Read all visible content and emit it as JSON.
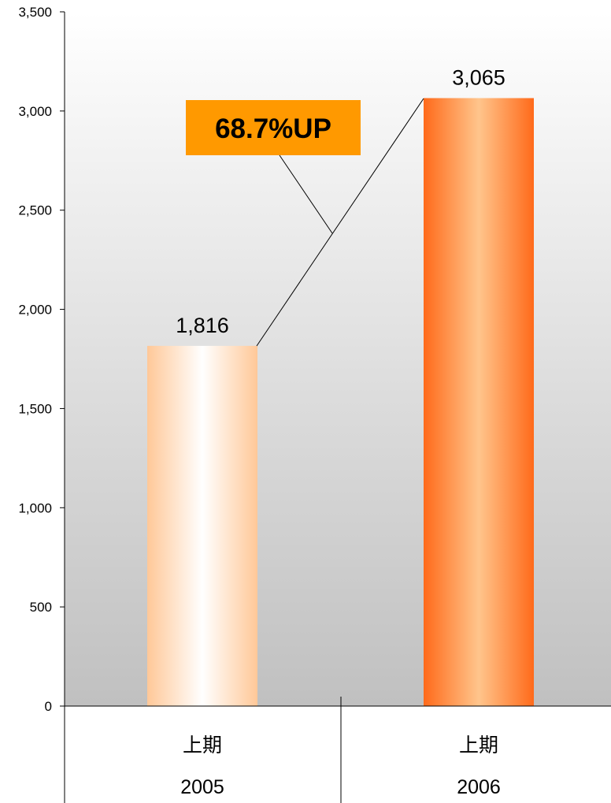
{
  "chart_data": {
    "type": "bar",
    "categories": [
      {
        "period": "上期",
        "year": "2005"
      },
      {
        "period": "上期",
        "year": "2006"
      }
    ],
    "values": [
      1816,
      3065
    ],
    "value_labels": [
      "1,816",
      "3,065"
    ],
    "ylim": [
      0,
      3500
    ],
    "yticks": [
      0,
      500,
      1000,
      1500,
      2000,
      2500,
      3000,
      3500
    ],
    "ytick_labels": [
      "0",
      "500",
      "1,000",
      "1,500",
      "2,000",
      "2,500",
      "3,000",
      "3,500"
    ],
    "title": "",
    "xlabel": "",
    "ylabel": "",
    "grid": false,
    "annotation": {
      "text": "68.7%UP",
      "box_color": "#FF9900"
    },
    "plot_background": {
      "top": "#FFFFFF",
      "bottom": "#C0C0C0"
    },
    "bar_colors": [
      {
        "edge": "#FFC898",
        "center": "#FFFFFF"
      },
      {
        "edge": "#FF6A1A",
        "center": "#FFC58C"
      }
    ]
  }
}
